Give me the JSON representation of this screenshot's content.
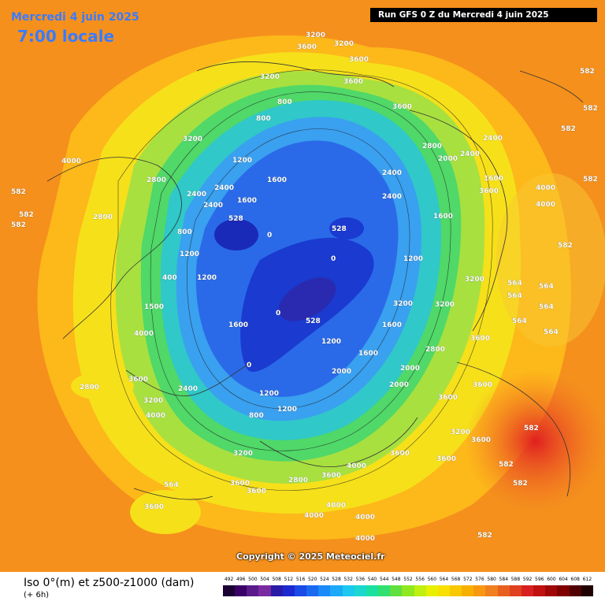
{
  "header": {
    "date": "Mercredi 4 juin 2025",
    "local_time": "7:00 locale",
    "run": "Run GFS 0 Z du Mercredi 4 juin 2025"
  },
  "copyright": "Copyright © 2025 Meteociel.fr",
  "legend": {
    "title": "Iso 0°(m) et z500-z1000 (dam)",
    "subtitle": "(+ 6h)",
    "scale": [
      "492",
      "496",
      "500",
      "504",
      "508",
      "512",
      "516",
      "520",
      "524",
      "528",
      "532",
      "536",
      "540",
      "544",
      "548",
      "552",
      "556",
      "560",
      "564",
      "568",
      "572",
      "576",
      "580",
      "584",
      "588",
      "592",
      "596",
      "600",
      "604",
      "608",
      "612"
    ],
    "colors": [
      "#1a0033",
      "#3a0066",
      "#5a1a8a",
      "#7a2aa0",
      "#2a1aa8",
      "#1a2ad0",
      "#1a4ae8",
      "#1a6af0",
      "#1a8af8",
      "#1aaaf8",
      "#1ac8f0",
      "#1ad8d0",
      "#1ae0a0",
      "#30e070",
      "#60e040",
      "#90e820",
      "#c0f010",
      "#e8f000",
      "#f8e000",
      "#f8c800",
      "#f8b000",
      "#f89810",
      "#f08020",
      "#e86020",
      "#e04020",
      "#d82020",
      "#c01010",
      "#a00808",
      "#800000",
      "#500000",
      "#200000"
    ]
  },
  "map_labels": {
    "iso0": [
      "3200",
      "3600",
      "800",
      "4000",
      "2800",
      "2400",
      "1200",
      "1600",
      "0",
      "2000",
      "400",
      "4000",
      "1500",
      "528",
      "582",
      "564"
    ],
    "thickness": [
      "528",
      "582",
      "564"
    ]
  }
}
